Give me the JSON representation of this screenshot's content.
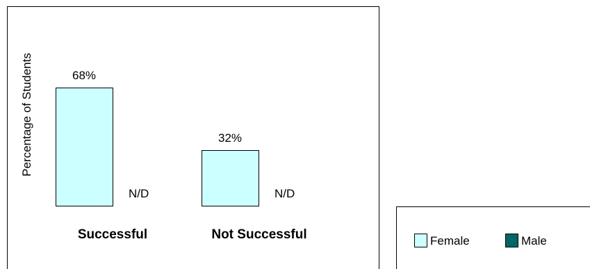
{
  "chart_data": {
    "type": "bar",
    "title": "",
    "xlabel": "",
    "ylabel": "Percentage of Students",
    "categories": [
      "Successful",
      "Not Successful"
    ],
    "ylim": [
      0,
      100
    ],
    "grid": false,
    "legend_position": "bottom-right",
    "series": [
      {
        "name": "Female",
        "color": "#ccffff",
        "values": [
          68,
          32
        ],
        "labels": [
          "68%",
          "32%"
        ]
      },
      {
        "name": "Male",
        "color": "#006666",
        "values": [
          null,
          null
        ],
        "labels": [
          "N/D",
          "N/D"
        ]
      }
    ]
  }
}
